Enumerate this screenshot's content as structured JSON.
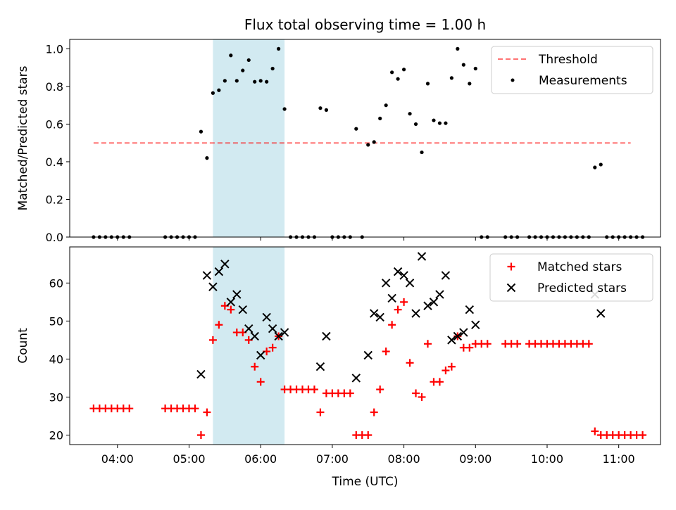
{
  "chart_data": [
    {
      "type": "scatter",
      "title": "Flux total observing time = 1.00 h",
      "xlabel": "",
      "ylabel": "Matched/Predicted stars",
      "xlim": [
        "03:20",
        "11:35"
      ],
      "ylim": [
        0,
        1.05
      ],
      "yticks": [
        0.0,
        0.2,
        0.4,
        0.6,
        0.8,
        1.0
      ],
      "ytick_labels": [
        "0.0",
        "0.2",
        "0.4",
        "0.6",
        "0.8",
        "1.0"
      ],
      "highlight_span": [
        "05:20",
        "06:20"
      ],
      "highlight_color": "#add8e6",
      "legend_position": "top-right",
      "threshold": {
        "name": "Threshold",
        "value": 0.5,
        "x_range": [
          "03:40",
          "11:10"
        ],
        "color": "#ff0000",
        "style": "dashed"
      },
      "series": [
        {
          "name": "Measurements",
          "color": "#000000",
          "marker": "dot",
          "points": [
            [
              "03:40",
              0
            ],
            [
              "03:45",
              0
            ],
            [
              "03:50",
              0
            ],
            [
              "03:55",
              0
            ],
            [
              "04:00",
              0
            ],
            [
              "04:05",
              0
            ],
            [
              "04:10",
              0
            ],
            [
              "04:40",
              0
            ],
            [
              "04:45",
              0
            ],
            [
              "04:50",
              0
            ],
            [
              "04:55",
              0
            ],
            [
              "05:00",
              0
            ],
            [
              "05:05",
              0
            ],
            [
              "05:10",
              0.56
            ],
            [
              "05:15",
              0.42
            ],
            [
              "05:20",
              0.765
            ],
            [
              "05:25",
              0.78
            ],
            [
              "05:30",
              0.83
            ],
            [
              "05:35",
              0.965
            ],
            [
              "05:40",
              0.83
            ],
            [
              "05:45",
              0.885
            ],
            [
              "05:50",
              0.94
            ],
            [
              "05:55",
              0.825
            ],
            [
              "06:00",
              0.83
            ],
            [
              "06:05",
              0.825
            ],
            [
              "06:10",
              0.895
            ],
            [
              "06:15",
              1.0
            ],
            [
              "06:20",
              0.68
            ],
            [
              "06:25",
              0
            ],
            [
              "06:30",
              0
            ],
            [
              "06:35",
              0
            ],
            [
              "06:40",
              0
            ],
            [
              "06:45",
              0
            ],
            [
              "06:50",
              0.685
            ],
            [
              "06:55",
              0.675
            ],
            [
              "07:00",
              0
            ],
            [
              "07:05",
              0
            ],
            [
              "07:10",
              0
            ],
            [
              "07:15",
              0
            ],
            [
              "07:20",
              0.575
            ],
            [
              "07:25",
              0
            ],
            [
              "07:30",
              0.49
            ],
            [
              "07:35",
              0.505
            ],
            [
              "07:40",
              0.63
            ],
            [
              "07:45",
              0.7
            ],
            [
              "07:50",
              0.875
            ],
            [
              "07:55",
              0.84
            ],
            [
              "08:00",
              0.89
            ],
            [
              "08:05",
              0.655
            ],
            [
              "08:10",
              0.6
            ],
            [
              "08:15",
              0.45
            ],
            [
              "08:20",
              0.815
            ],
            [
              "08:25",
              0.62
            ],
            [
              "08:30",
              0.605
            ],
            [
              "08:35",
              0.605
            ],
            [
              "08:40",
              0.845
            ],
            [
              "08:45",
              1.0
            ],
            [
              "08:50",
              0.915
            ],
            [
              "08:55",
              0.815
            ],
            [
              "09:00",
              0.895
            ],
            [
              "09:05",
              0
            ],
            [
              "09:10",
              0
            ],
            [
              "09:25",
              0
            ],
            [
              "09:30",
              0
            ],
            [
              "09:35",
              0
            ],
            [
              "09:45",
              0
            ],
            [
              "09:50",
              0
            ],
            [
              "09:55",
              0
            ],
            [
              "10:00",
              0
            ],
            [
              "10:05",
              0
            ],
            [
              "10:10",
              0
            ],
            [
              "10:15",
              0
            ],
            [
              "10:20",
              0
            ],
            [
              "10:25",
              0
            ],
            [
              "10:30",
              0
            ],
            [
              "10:35",
              0
            ],
            [
              "10:40",
              0.37
            ],
            [
              "10:45",
              0.385
            ],
            [
              "10:50",
              0
            ],
            [
              "10:55",
              0
            ],
            [
              "11:00",
              0
            ],
            [
              "11:05",
              0
            ],
            [
              "11:10",
              0
            ],
            [
              "11:15",
              0
            ],
            [
              "11:20",
              0
            ]
          ]
        }
      ]
    },
    {
      "type": "scatter",
      "title": "",
      "xlabel": "Time (UTC)",
      "ylabel": "Count",
      "xlim": [
        "03:20",
        "11:35"
      ],
      "ylim": [
        17.5,
        69.5
      ],
      "xticks": [
        "04:00",
        "05:00",
        "06:00",
        "07:00",
        "08:00",
        "09:00",
        "10:00",
        "11:00"
      ],
      "yticks": [
        20,
        30,
        40,
        50,
        60
      ],
      "ytick_labels": [
        "20",
        "30",
        "40",
        "50",
        "60"
      ],
      "highlight_span": [
        "05:20",
        "06:20"
      ],
      "highlight_color": "#add8e6",
      "legend_position": "top-right",
      "series": [
        {
          "name": "Matched stars",
          "color": "#ff0000",
          "marker": "plus",
          "points": [
            [
              "03:40",
              27
            ],
            [
              "03:45",
              27
            ],
            [
              "03:50",
              27
            ],
            [
              "03:55",
              27
            ],
            [
              "04:00",
              27
            ],
            [
              "04:05",
              27
            ],
            [
              "04:10",
              27
            ],
            [
              "04:40",
              27
            ],
            [
              "04:45",
              27
            ],
            [
              "04:50",
              27
            ],
            [
              "04:55",
              27
            ],
            [
              "05:00",
              27
            ],
            [
              "05:05",
              27
            ],
            [
              "05:10",
              20
            ],
            [
              "05:15",
              26
            ],
            [
              "05:20",
              45
            ],
            [
              "05:25",
              49
            ],
            [
              "05:30",
              54
            ],
            [
              "05:35",
              53
            ],
            [
              "05:40",
              47
            ],
            [
              "05:45",
              47
            ],
            [
              "05:50",
              45
            ],
            [
              "05:55",
              38
            ],
            [
              "06:00",
              34
            ],
            [
              "06:05",
              42
            ],
            [
              "06:10",
              43
            ],
            [
              "06:15",
              46
            ],
            [
              "06:20",
              32
            ],
            [
              "06:25",
              32
            ],
            [
              "06:30",
              32
            ],
            [
              "06:35",
              32
            ],
            [
              "06:40",
              32
            ],
            [
              "06:45",
              32
            ],
            [
              "06:50",
              26
            ],
            [
              "06:55",
              31
            ],
            [
              "07:00",
              31
            ],
            [
              "07:05",
              31
            ],
            [
              "07:10",
              31
            ],
            [
              "07:15",
              31
            ],
            [
              "07:20",
              20
            ],
            [
              "07:25",
              20
            ],
            [
              "07:30",
              20
            ],
            [
              "07:35",
              26
            ],
            [
              "07:40",
              32
            ],
            [
              "07:45",
              42
            ],
            [
              "07:50",
              49
            ],
            [
              "07:55",
              53
            ],
            [
              "08:00",
              55
            ],
            [
              "08:05",
              39
            ],
            [
              "08:10",
              31
            ],
            [
              "08:15",
              30
            ],
            [
              "08:20",
              44
            ],
            [
              "08:25",
              34
            ],
            [
              "08:30",
              34
            ],
            [
              "08:35",
              37
            ],
            [
              "08:40",
              38
            ],
            [
              "08:45",
              46
            ],
            [
              "08:50",
              43
            ],
            [
              "08:55",
              43
            ],
            [
              "09:00",
              44
            ],
            [
              "09:05",
              44
            ],
            [
              "09:10",
              44
            ],
            [
              "09:25",
              44
            ],
            [
              "09:30",
              44
            ],
            [
              "09:35",
              44
            ],
            [
              "09:45",
              44
            ],
            [
              "09:50",
              44
            ],
            [
              "09:55",
              44
            ],
            [
              "10:00",
              44
            ],
            [
              "10:05",
              44
            ],
            [
              "10:10",
              44
            ],
            [
              "10:15",
              44
            ],
            [
              "10:20",
              44
            ],
            [
              "10:25",
              44
            ],
            [
              "10:30",
              44
            ],
            [
              "10:35",
              44
            ],
            [
              "10:40",
              21
            ],
            [
              "10:45",
              20
            ],
            [
              "10:50",
              20
            ],
            [
              "10:55",
              20
            ],
            [
              "11:00",
              20
            ],
            [
              "11:05",
              20
            ],
            [
              "11:10",
              20
            ],
            [
              "11:15",
              20
            ],
            [
              "11:20",
              20
            ]
          ]
        },
        {
          "name": "Predicted stars",
          "color": "#000000",
          "marker": "x",
          "points": [
            [
              "05:10",
              36
            ],
            [
              "05:15",
              62
            ],
            [
              "05:20",
              59
            ],
            [
              "05:25",
              63
            ],
            [
              "05:30",
              65
            ],
            [
              "05:35",
              55
            ],
            [
              "05:40",
              57
            ],
            [
              "05:45",
              53
            ],
            [
              "05:50",
              48
            ],
            [
              "05:55",
              46
            ],
            [
              "06:00",
              41
            ],
            [
              "06:05",
              51
            ],
            [
              "06:10",
              48
            ],
            [
              "06:15",
              46
            ],
            [
              "06:20",
              47
            ],
            [
              "06:50",
              38
            ],
            [
              "06:55",
              46
            ],
            [
              "07:20",
              35
            ],
            [
              "07:30",
              41
            ],
            [
              "07:35",
              52
            ],
            [
              "07:40",
              51
            ],
            [
              "07:45",
              60
            ],
            [
              "07:50",
              56
            ],
            [
              "07:55",
              63
            ],
            [
              "08:00",
              62
            ],
            [
              "08:05",
              60
            ],
            [
              "08:10",
              52
            ],
            [
              "08:15",
              67
            ],
            [
              "08:20",
              54
            ],
            [
              "08:25",
              55
            ],
            [
              "08:30",
              57
            ],
            [
              "08:35",
              62
            ],
            [
              "08:40",
              45
            ],
            [
              "08:45",
              46
            ],
            [
              "08:50",
              47
            ],
            [
              "08:55",
              53
            ],
            [
              "09:00",
              49
            ],
            [
              "10:40",
              57
            ],
            [
              "10:45",
              52
            ]
          ]
        }
      ]
    }
  ]
}
